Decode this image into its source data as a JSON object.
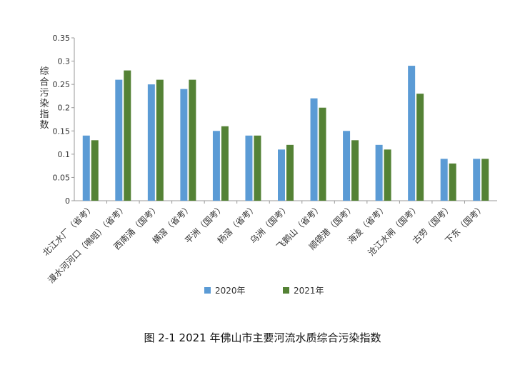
{
  "chart_data": {
    "type": "bar",
    "ylabel": "综合污染指数",
    "ylim": [
      0,
      0.35
    ],
    "yticks": [
      "0",
      "0.05",
      "0.1",
      "0.15",
      "0.2",
      "0.25",
      "0.3",
      "0.35"
    ],
    "categories": [
      "北江水厂（省考）",
      "漫水河河口（鳴咀）（省考）",
      "西南涌（国考）",
      "横滘（省考）",
      "平洲（国考）",
      "杨滘（省考）",
      "乌洲（国考）",
      "飞鹅山（省考）",
      "顺德港（国考）",
      "海凌（省考）",
      "沧江水闸（国考）",
      "古劳（国考）",
      "下东（国考）"
    ],
    "series": [
      {
        "name": "2020年",
        "color": "#5b9bd5",
        "values": [
          0.14,
          0.26,
          0.25,
          0.24,
          0.15,
          0.14,
          0.11,
          0.22,
          0.15,
          0.12,
          0.29,
          0.09,
          0.09
        ]
      },
      {
        "name": "2021年",
        "color": "#548235",
        "values": [
          0.13,
          0.28,
          0.26,
          0.26,
          0.16,
          0.14,
          0.12,
          0.2,
          0.13,
          0.11,
          0.23,
          0.08,
          0.09
        ]
      }
    ],
    "grid": false,
    "legend_position": "bottom"
  },
  "caption": "图 2-1 2021 年佛山市主要河流水质综合污染指数"
}
